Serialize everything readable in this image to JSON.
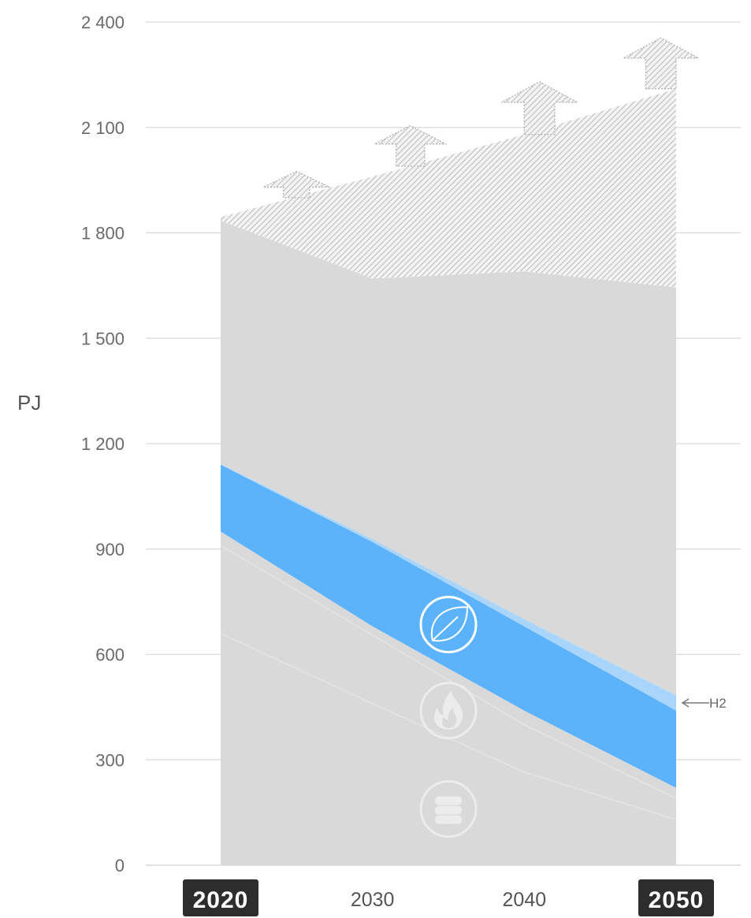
{
  "chart_data": {
    "type": "area",
    "ylabel": "PJ",
    "ylim": [
      0,
      2400
    ],
    "yticks": [
      0,
      300,
      600,
      900,
      1200,
      1500,
      1800,
      2100,
      2400
    ],
    "ytick_labels": [
      "0",
      "300",
      "600",
      "900",
      "1 200",
      "1 500",
      "1 800",
      "2 100",
      "2 400"
    ],
    "x": [
      2020,
      2030,
      2040,
      2050
    ],
    "xtick_labels": [
      "2020",
      "2030",
      "2040",
      "2050"
    ],
    "highlighted_x": [
      "2020",
      "2050"
    ],
    "grid": true,
    "layers": [
      {
        "id": "lower-grey",
        "color": "#d9d9d9",
        "lower": [
          0,
          0,
          0,
          0
        ],
        "upper": [
          950,
          680,
          440,
          220
        ]
      },
      {
        "id": "blue",
        "color": "#5db3fb",
        "icon": "leaf-icon",
        "lower": [
          950,
          680,
          440,
          220
        ],
        "upper": [
          1140,
          920,
          680,
          440
        ]
      },
      {
        "id": "h2",
        "color": "#a9d5fb",
        "label": "H2",
        "lower": [
          1140,
          920,
          680,
          440
        ],
        "upper": [
          1142,
          928,
          700,
          484
        ]
      },
      {
        "id": "upper-grey",
        "color": "#d9d9d9",
        "lower": [
          1142,
          928,
          700,
          484
        ],
        "upper": [
          1835,
          1670,
          1690,
          1645
        ]
      },
      {
        "id": "hatched",
        "color": "#c8c8c8",
        "pattern": "hatch",
        "lower": [
          1835,
          1670,
          1690,
          1645
        ],
        "upper": [
          1845,
          1960,
          2080,
          2210
        ]
      }
    ],
    "faint_lines": [
      {
        "x": [
          2020,
          2030,
          2040,
          2050
        ],
        "y": [
          910,
          655,
          400,
          190
        ]
      },
      {
        "x": [
          2020,
          2030,
          2040,
          2050
        ],
        "y": [
          660,
          460,
          265,
          130
        ]
      }
    ],
    "growth_arrows": [
      {
        "x": 2025,
        "from": 1900,
        "to": 1975
      },
      {
        "x": 2032.5,
        "from": 1990,
        "to": 2105
      },
      {
        "x": 2041,
        "from": 2080,
        "to": 2230
      },
      {
        "x": 2049,
        "from": 2210,
        "to": 2355
      }
    ],
    "icons": [
      {
        "name": "leaf-icon",
        "x": 2035,
        "y": 685,
        "style": "solid-outline"
      },
      {
        "name": "flame-icon",
        "x": 2035,
        "y": 440,
        "style": "faint"
      },
      {
        "name": "database-icon",
        "x": 2035,
        "y": 160,
        "style": "faint"
      }
    ],
    "annotations": [
      {
        "text": "H2",
        "x": 2050,
        "y": 462,
        "arrow": "left"
      }
    ]
  }
}
